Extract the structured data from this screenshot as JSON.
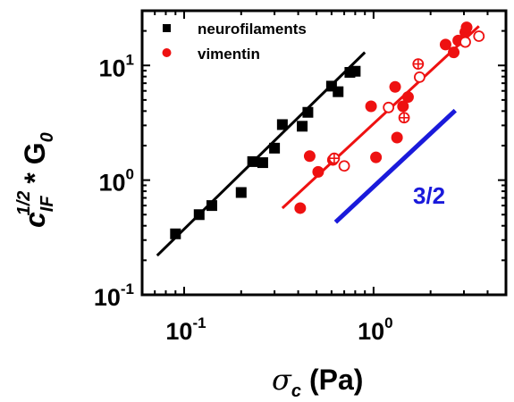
{
  "chart_data": {
    "type": "scatter",
    "x_scale": "log",
    "y_scale": "log",
    "xlim": [
      0.06,
      5.0
    ],
    "ylim": [
      0.1,
      30
    ],
    "x_ticks": [
      {
        "value": 0.1,
        "base": "10",
        "exp": "-1"
      },
      {
        "value": 1.0,
        "label": "10",
        "exp": "0"
      }
    ],
    "y_ticks": [
      {
        "value": 0.1,
        "base": "10",
        "exp": "-1"
      },
      {
        "value": 1.0,
        "label": "10",
        "exp": "0"
      },
      {
        "value": 10.0,
        "label": "10",
        "exp": "1"
      }
    ],
    "xlabel": {
      "symbol": "σ",
      "sub": "c",
      "unit": "(Pa)"
    },
    "ylabel": {
      "base": "c",
      "sub": "IF",
      "sup": "1/2",
      "rest": "* G",
      "rest_sub": "0"
    },
    "legend": {
      "placement": "top-left",
      "entries": [
        "neurofilaments",
        "vimentin"
      ]
    },
    "annotation": {
      "text": "3/2",
      "color": "#1a1adb"
    },
    "colors": {
      "neurofilaments": "#000000",
      "vimentin": "#ee1111",
      "slope_line": "#1a1adb"
    },
    "series": [
      {
        "name": "neurofilaments",
        "marker": "square-filled",
        "points": [
          [
            0.09,
            0.34
          ],
          [
            0.12,
            0.5
          ],
          [
            0.14,
            0.6
          ],
          [
            0.2,
            0.78
          ],
          [
            0.23,
            1.45
          ],
          [
            0.26,
            1.42
          ],
          [
            0.3,
            1.9
          ],
          [
            0.33,
            3.05
          ],
          [
            0.42,
            2.95
          ],
          [
            0.45,
            3.9
          ],
          [
            0.6,
            6.6
          ],
          [
            0.65,
            5.9
          ],
          [
            0.75,
            8.7
          ],
          [
            0.8,
            8.9
          ]
        ]
      },
      {
        "name": "vimentin",
        "marker": "circle-filled",
        "points": [
          [
            0.41,
            0.57
          ],
          [
            0.46,
            1.62
          ],
          [
            0.51,
            1.18
          ],
          [
            0.61,
            1.5
          ],
          [
            0.97,
            4.4
          ],
          [
            1.03,
            1.58
          ],
          [
            1.3,
            6.5
          ],
          [
            1.33,
            2.35
          ],
          [
            1.43,
            4.4
          ],
          [
            1.52,
            5.3
          ],
          [
            2.4,
            15.2
          ],
          [
            2.65,
            13.0
          ],
          [
            2.8,
            16.5
          ],
          [
            3.05,
            19.5
          ],
          [
            3.1,
            21.5
          ]
        ]
      },
      {
        "name": "vimentin-open",
        "marker": "circle-open",
        "points": [
          [
            0.7,
            1.33
          ],
          [
            1.2,
            4.3
          ],
          [
            1.75,
            7.9
          ],
          [
            3.05,
            16.0
          ],
          [
            3.6,
            18.0
          ]
        ]
      },
      {
        "name": "vimentin-crossed",
        "marker": "circle-crossed",
        "points": [
          [
            0.62,
            1.55
          ],
          [
            1.45,
            3.5
          ],
          [
            1.72,
            10.3
          ]
        ]
      }
    ],
    "fit_lines": [
      {
        "series": "neurofilaments",
        "from": [
          0.072,
          0.22
        ],
        "to": [
          0.9,
          13.0
        ],
        "color": "#000000"
      },
      {
        "series": "vimentin",
        "from": [
          0.33,
          0.57
        ],
        "to": [
          3.6,
          22.0
        ],
        "color": "#ee1111"
      },
      {
        "series": "slope-3/2",
        "from": [
          0.63,
          0.43
        ],
        "to": [
          2.7,
          4.05
        ],
        "color": "#1a1adb"
      }
    ]
  }
}
